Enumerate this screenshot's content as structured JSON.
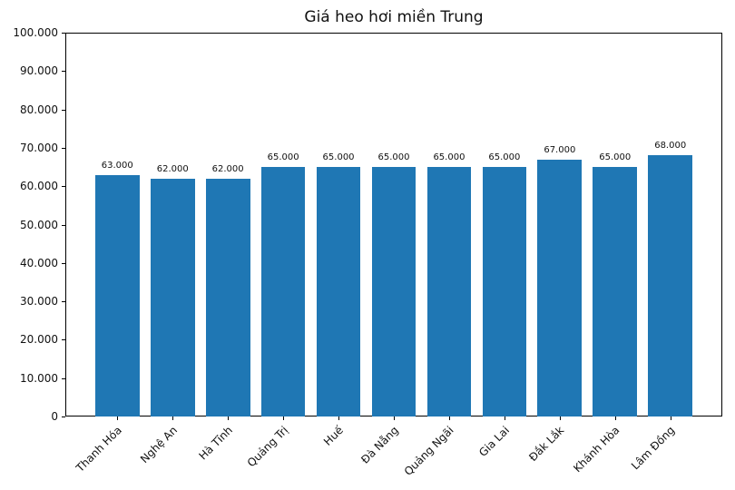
{
  "colors": {
    "bar": "#1f77b4",
    "axis": "#000000",
    "text": "#111111",
    "background": "#ffffff"
  },
  "chart_data": {
    "type": "bar",
    "title": "Giá heo hơi miền Trung",
    "xlabel": "",
    "ylabel": "",
    "categories": [
      "Thanh Hóa",
      "Nghệ An",
      "Hà Tĩnh",
      "Quảng Trị",
      "Huế",
      "Đà Nẵng",
      "Quảng Ngãi",
      "Gia Lai",
      "Đắk Lắk",
      "Khánh Hòa",
      "Lâm Đồng"
    ],
    "values": [
      63000,
      62000,
      62000,
      65000,
      65000,
      65000,
      65000,
      65000,
      67000,
      65000,
      68000
    ],
    "bar_labels": [
      "63.000",
      "62.000",
      "62.000",
      "65.000",
      "65.000",
      "65.000",
      "65.000",
      "65.000",
      "67.000",
      "65.000",
      "68.000"
    ],
    "ylim": [
      0,
      100000
    ],
    "ytick_values": [
      0,
      10000,
      20000,
      30000,
      40000,
      50000,
      60000,
      70000,
      80000,
      90000,
      100000
    ],
    "ytick_labels": [
      "0",
      "10.000",
      "20.000",
      "30.000",
      "40.000",
      "50.000",
      "60.000",
      "70.000",
      "80.000",
      "90.000",
      "100.000"
    ],
    "bar_width_ratio": 0.8,
    "bar_color": "#1f77b4",
    "grid": false,
    "legend": null,
    "xtick_rotation": 45
  }
}
